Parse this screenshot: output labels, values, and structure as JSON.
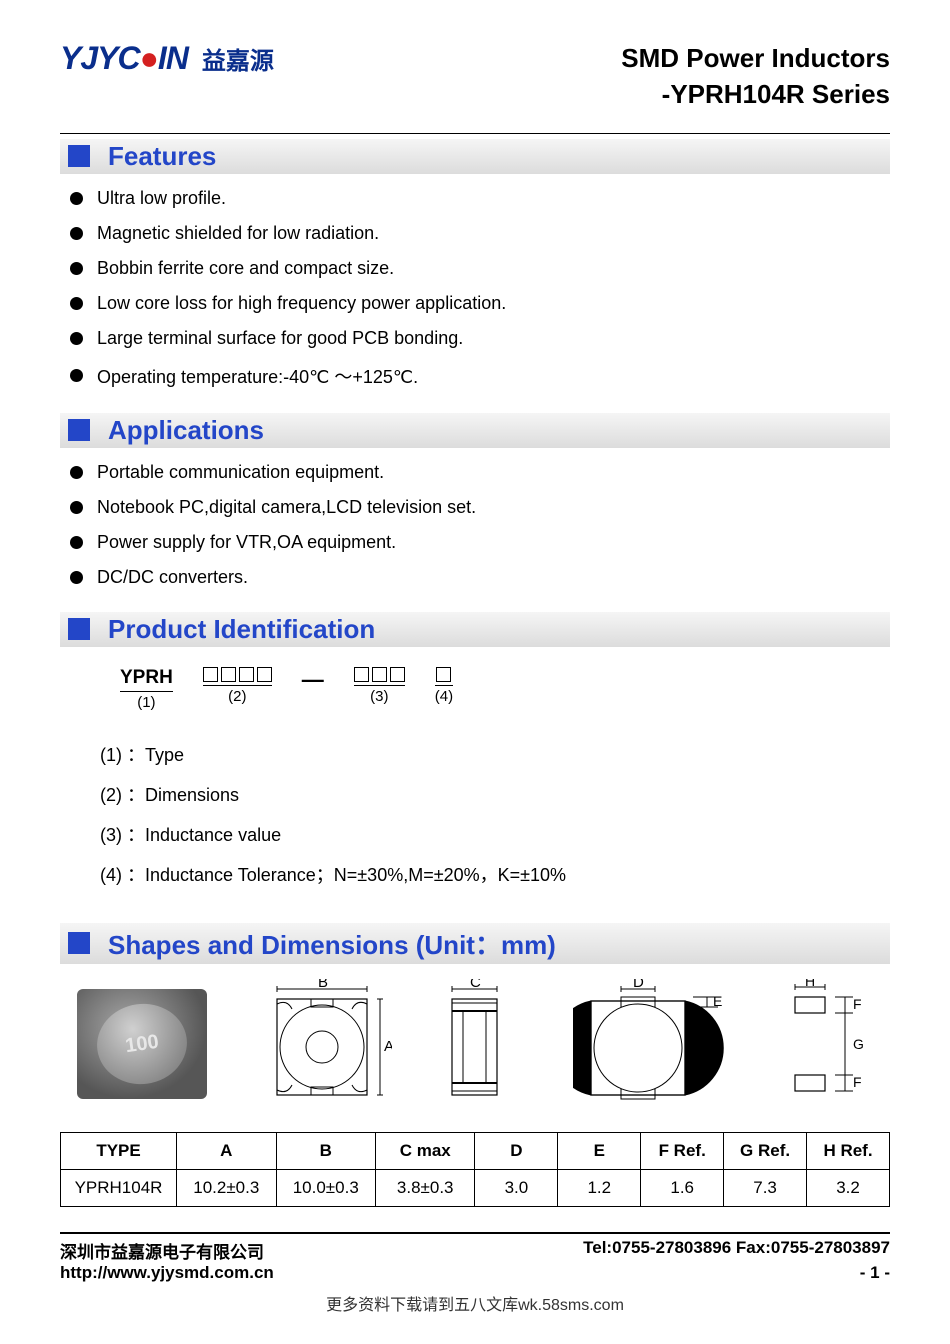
{
  "logo": {
    "text": "YJYC",
    "red": "●",
    "text2": "IN",
    "cn": "益嘉源"
  },
  "title": {
    "line1": "SMD Power Inductors",
    "line2": "-YPRH104R Series"
  },
  "sections": {
    "features": {
      "heading": "Features",
      "items": [
        "Ultra low profile.",
        "Magnetic shielded for low radiation.",
        "Bobbin ferrite core and compact size.",
        "Low core loss for high frequency power application.",
        "Large terminal surface for good PCB bonding.",
        "Operating temperature:-40℃ ～+125℃."
      ]
    },
    "applications": {
      "heading": "Applications",
      "items": [
        "Portable communication equipment.",
        "Notebook PC,digital camera,LCD television set.",
        "Power supply for VTR,OA equipment.",
        "DC/DC converters."
      ]
    },
    "prodid": {
      "heading": "Product Identification",
      "scheme": {
        "p1": "YPRH",
        "n1": "(1)",
        "p2_boxes": 4,
        "n2": "(2)",
        "dash": "—",
        "p3_boxes": 3,
        "n3": "(3)",
        "p4_boxes": 1,
        "n4": "(4)"
      },
      "defs": [
        "(1) ：Type",
        "(2) ：Dimensions",
        "(3) ：Inductance value",
        "(4) ：Inductance Tolerance；N=±30%,M=±20%，K=±10%"
      ]
    },
    "shapes": {
      "heading": "Shapes and Dimensions (Unit：mm)",
      "photo_marking": "100",
      "diagram_labels": {
        "A": "A",
        "B": "B",
        "C": "C",
        "D": "D",
        "E": "E",
        "F": "F",
        "G": "G",
        "H": "H"
      },
      "table": {
        "columns": [
          "TYPE",
          "A",
          "B",
          "C max",
          "D",
          "E",
          "F Ref.",
          "G Ref.",
          "H Ref."
        ],
        "rows": [
          [
            "YPRH104R",
            "10.2±0.3",
            "10.0±0.3",
            "3.8±0.3",
            "3.0",
            "1.2",
            "1.6",
            "7.3",
            "3.2"
          ]
        ],
        "col_widths": [
          "14%",
          "12%",
          "12%",
          "12%",
          "10%",
          "10%",
          "10%",
          "10%",
          "10%"
        ]
      }
    }
  },
  "footer": {
    "company": "深圳市益嘉源电子有限公司",
    "tel": "Tel:0755-27803896   Fax:0755-27803897",
    "url": "http://www.yjysmd.com.cn",
    "page": "- 1 -",
    "download_note": "更多资料下载请到五八文库wk.58sms.com"
  },
  "colors": {
    "logo_blue": "#0a2e8c",
    "logo_red": "#d42020",
    "section_blue": "#2346c8",
    "bar_bg_light": "#f5f5f5",
    "bar_bg_dark": "#dcdcdc"
  }
}
